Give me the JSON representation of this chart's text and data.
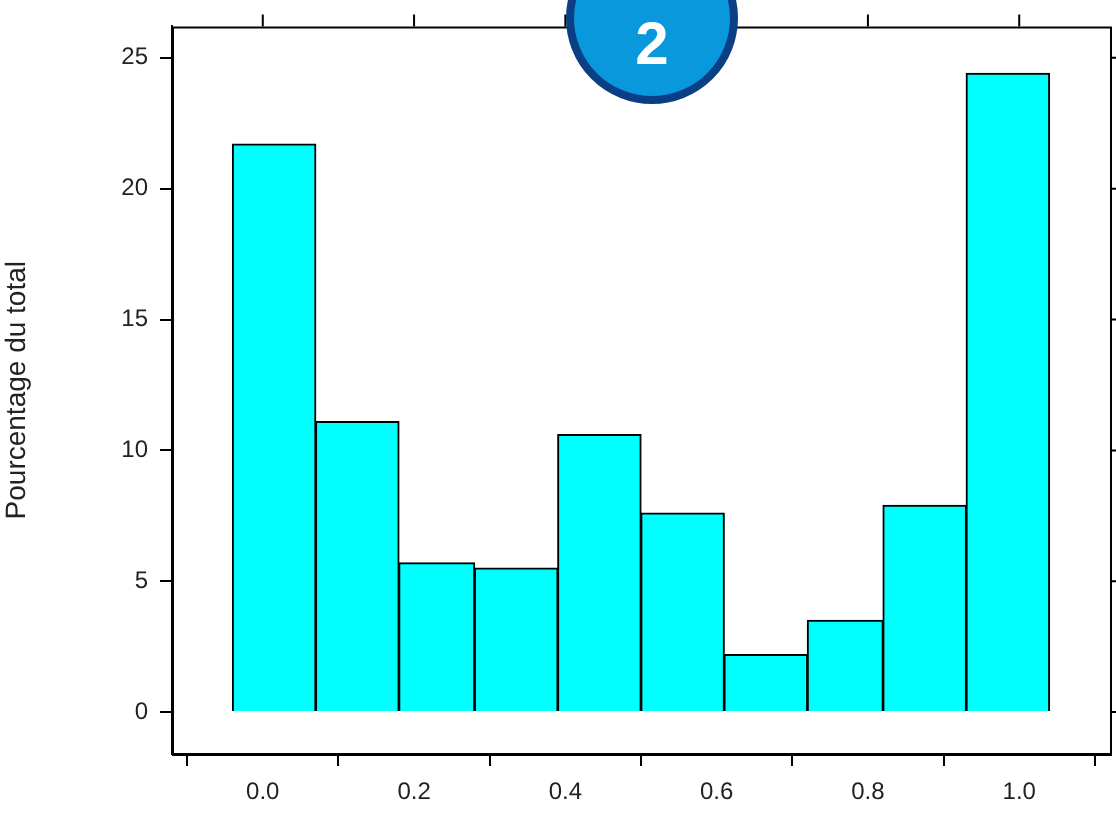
{
  "chart_data": {
    "type": "histogram",
    "ylabel": "Pourcentage du total",
    "bins": [
      -0.04,
      0.07,
      0.18,
      0.28,
      0.39,
      0.5,
      0.61,
      0.72,
      0.82,
      0.93,
      1.04
    ],
    "values": [
      21.7,
      11.1,
      5.7,
      5.5,
      10.6,
      7.6,
      2.2,
      3.5,
      7.9,
      24.4
    ],
    "color": "#00ffff",
    "xlim": [
      -0.12,
      1.12
    ],
    "xticks": [
      {
        "value": 0,
        "label": "0.0"
      },
      {
        "value": 0.2,
        "label": "0.2"
      },
      {
        "value": 0.4,
        "label": "0.4"
      },
      {
        "value": 0.6,
        "label": "0.6"
      },
      {
        "value": 0.8,
        "label": "0.8"
      },
      {
        "value": 1,
        "label": "1.0"
      }
    ],
    "ylim": [
      -1.6,
      26.2
    ],
    "yticks": [
      0,
      5,
      10,
      15,
      20,
      25
    ],
    "annotations": [
      "2"
    ]
  }
}
